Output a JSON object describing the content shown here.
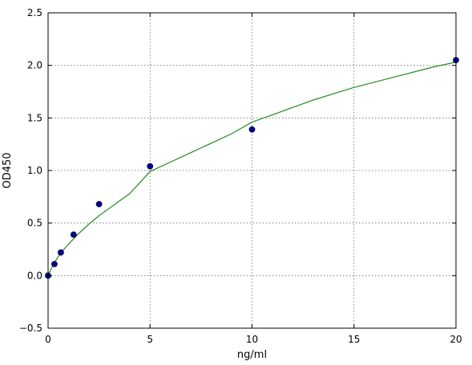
{
  "chart_data": {
    "type": "scatter",
    "title": "",
    "xlabel": "ng/ml",
    "ylabel": "OD450",
    "xlim": [
      0,
      20
    ],
    "ylim": [
      -0.5,
      2.5
    ],
    "xticks": [
      0,
      5,
      10,
      15,
      20
    ],
    "xtick_labels": [
      "0",
      "5",
      "10",
      "15",
      "20"
    ],
    "yticks": [
      -0.5,
      0.0,
      0.5,
      1.0,
      1.5,
      2.0,
      2.5
    ],
    "ytick_labels": [
      "−0.5",
      "0.0",
      "0.5",
      "1.0",
      "1.5",
      "2.0",
      "2.5"
    ],
    "grid": true,
    "points": {
      "x": [
        0,
        0.3125,
        0.625,
        1.25,
        2.5,
        5,
        10,
        20
      ],
      "y": [
        0.0,
        0.11,
        0.22,
        0.39,
        0.68,
        1.04,
        1.39,
        2.05
      ],
      "color": "#00008b"
    },
    "fit_curve": {
      "type": "line",
      "color": "#228b22",
      "x": [
        0,
        0.25,
        0.5,
        0.75,
        1,
        1.5,
        2,
        2.5,
        3,
        4,
        5,
        6,
        7,
        8,
        9,
        10,
        11,
        12,
        13,
        14,
        15,
        16,
        17,
        18,
        19,
        20
      ],
      "y": [
        0.0,
        0.105,
        0.18,
        0.245,
        0.3,
        0.4,
        0.49,
        0.57,
        0.64,
        0.78,
        0.99,
        1.08,
        1.17,
        1.26,
        1.35,
        1.46,
        1.53,
        1.6,
        1.67,
        1.73,
        1.79,
        1.84,
        1.89,
        1.94,
        1.99,
        2.03
      ]
    }
  }
}
